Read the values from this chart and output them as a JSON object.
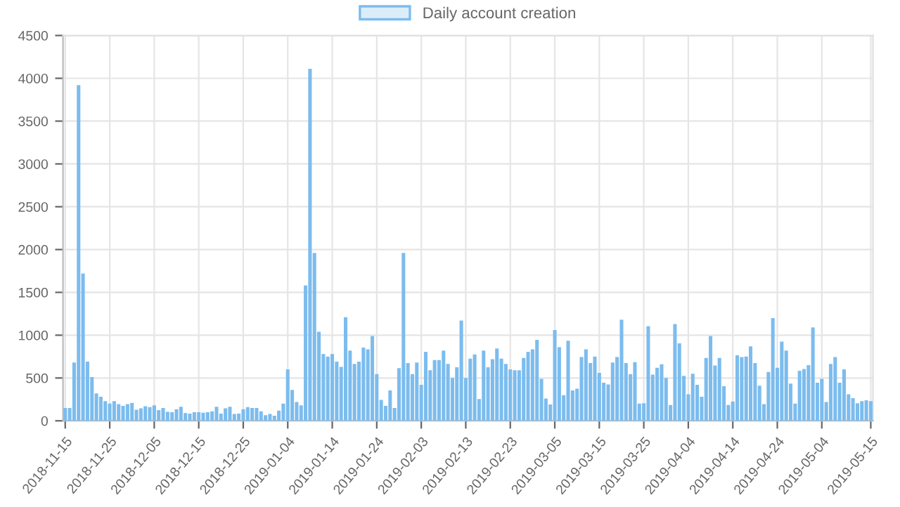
{
  "chart_data": {
    "type": "bar",
    "x": [
      "2018-11-15",
      "2018-11-16",
      "2018-11-17",
      "2018-11-18",
      "2018-11-19",
      "2018-11-20",
      "2018-11-21",
      "2018-11-22",
      "2018-11-23",
      "2018-11-24",
      "2018-11-25",
      "2018-11-26",
      "2018-11-27",
      "2018-11-28",
      "2018-11-29",
      "2018-11-30",
      "2018-12-01",
      "2018-12-02",
      "2018-12-03",
      "2018-12-04",
      "2018-12-05",
      "2018-12-06",
      "2018-12-07",
      "2018-12-08",
      "2018-12-09",
      "2018-12-10",
      "2018-12-11",
      "2018-12-12",
      "2018-12-13",
      "2018-12-14",
      "2018-12-15",
      "2018-12-16",
      "2018-12-17",
      "2018-12-18",
      "2018-12-19",
      "2018-12-20",
      "2018-12-21",
      "2018-12-22",
      "2018-12-23",
      "2018-12-24",
      "2018-12-25",
      "2018-12-26",
      "2018-12-27",
      "2018-12-28",
      "2018-12-29",
      "2018-12-30",
      "2018-12-31",
      "2019-01-01",
      "2019-01-02",
      "2019-01-03",
      "2019-01-04",
      "2019-01-05",
      "2019-01-06",
      "2019-01-07",
      "2019-01-08",
      "2019-01-09",
      "2019-01-10",
      "2019-01-11",
      "2019-01-12",
      "2019-01-13",
      "2019-01-14",
      "2019-01-15",
      "2019-01-16",
      "2019-01-17",
      "2019-01-18",
      "2019-01-19",
      "2019-01-20",
      "2019-01-21",
      "2019-01-22",
      "2019-01-23",
      "2019-01-24",
      "2019-01-25",
      "2019-01-26",
      "2019-01-27",
      "2019-01-28",
      "2019-01-29",
      "2019-01-30",
      "2019-01-31",
      "2019-02-01",
      "2019-02-02",
      "2019-02-03",
      "2019-02-04",
      "2019-02-05",
      "2019-02-06",
      "2019-02-07",
      "2019-02-08",
      "2019-02-09",
      "2019-02-10",
      "2019-02-11",
      "2019-02-12",
      "2019-02-13",
      "2019-02-14",
      "2019-02-15",
      "2019-02-16",
      "2019-02-17",
      "2019-02-18",
      "2019-02-19",
      "2019-02-20",
      "2019-02-21",
      "2019-02-22",
      "2019-02-23",
      "2019-02-24",
      "2019-02-25",
      "2019-02-26",
      "2019-02-27",
      "2019-02-28",
      "2019-03-01",
      "2019-03-02",
      "2019-03-03",
      "2019-03-04",
      "2019-03-05",
      "2019-03-06",
      "2019-03-07",
      "2019-03-08",
      "2019-03-09",
      "2019-03-10",
      "2019-03-11",
      "2019-03-12",
      "2019-03-13",
      "2019-03-14",
      "2019-03-15",
      "2019-03-16",
      "2019-03-17",
      "2019-03-18",
      "2019-03-19",
      "2019-03-20",
      "2019-03-21",
      "2019-03-22",
      "2019-03-23",
      "2019-03-24",
      "2019-03-25",
      "2019-03-26",
      "2019-03-27",
      "2019-03-28",
      "2019-03-29",
      "2019-03-30",
      "2019-03-31",
      "2019-04-01",
      "2019-04-02",
      "2019-04-03",
      "2019-04-04",
      "2019-04-05",
      "2019-04-06",
      "2019-04-07",
      "2019-04-08",
      "2019-04-09",
      "2019-04-10",
      "2019-04-11",
      "2019-04-12",
      "2019-04-13",
      "2019-04-14",
      "2019-04-15",
      "2019-04-16",
      "2019-04-17",
      "2019-04-18",
      "2019-04-19",
      "2019-04-20",
      "2019-04-21",
      "2019-04-22",
      "2019-04-23",
      "2019-04-24",
      "2019-04-25",
      "2019-04-26",
      "2019-04-27",
      "2019-04-28",
      "2019-04-29",
      "2019-04-30",
      "2019-05-01",
      "2019-05-02",
      "2019-05-03",
      "2019-05-04",
      "2019-05-05",
      "2019-05-06",
      "2019-05-07",
      "2019-05-08",
      "2019-05-09",
      "2019-05-10",
      "2019-05-11",
      "2019-05-12",
      "2019-05-13",
      "2019-05-14",
      "2019-05-15"
    ],
    "series": [
      {
        "name": "Daily account creation",
        "color": "#7cbcee",
        "values": [
          150,
          150,
          680,
          3920,
          1720,
          690,
          510,
          320,
          280,
          230,
          200,
          230,
          195,
          175,
          195,
          210,
          130,
          145,
          170,
          160,
          180,
          125,
          150,
          105,
          100,
          135,
          165,
          90,
          85,
          100,
          100,
          95,
          100,
          110,
          165,
          85,
          145,
          165,
          80,
          85,
          135,
          160,
          150,
          150,
          110,
          65,
          80,
          60,
          120,
          200,
          600,
          360,
          220,
          180,
          1580,
          4110,
          1960,
          1040,
          780,
          750,
          780,
          690,
          630,
          1210,
          820,
          665,
          690,
          855,
          835,
          990,
          545,
          245,
          175,
          355,
          150,
          615,
          1960,
          675,
          545,
          680,
          420,
          805,
          590,
          710,
          710,
          820,
          665,
          500,
          625,
          1170,
          500,
          725,
          775,
          255,
          820,
          625,
          720,
          845,
          725,
          665,
          600,
          590,
          590,
          735,
          805,
          835,
          945,
          490,
          260,
          190,
          1060,
          860,
          300,
          935,
          355,
          375,
          745,
          835,
          675,
          750,
          560,
          445,
          425,
          680,
          745,
          1180,
          675,
          545,
          685,
          200,
          205,
          1105,
          540,
          620,
          660,
          500,
          185,
          1130,
          905,
          525,
          310,
          550,
          420,
          280,
          735,
          990,
          645,
          735,
          405,
          185,
          225,
          765,
          745,
          750,
          870,
          675,
          410,
          195,
          570,
          1200,
          620,
          925,
          820,
          435,
          200,
          585,
          605,
          650,
          1090,
          445,
          490,
          220,
          665,
          745,
          445,
          600,
          310,
          265,
          205,
          230,
          240,
          230
        ]
      }
    ],
    "xlim": [
      "2018-11-14T12:00",
      "2019-05-15T12:00"
    ],
    "xticks": [
      "2018-11-15",
      "2018-11-25",
      "2018-12-05",
      "2018-12-15",
      "2018-12-25",
      "2019-01-04",
      "2019-01-14",
      "2019-01-24",
      "2019-02-03",
      "2019-02-13",
      "2019-02-23",
      "2019-03-05",
      "2019-03-15",
      "2019-03-25",
      "2019-04-04",
      "2019-04-14",
      "2019-04-24",
      "2019-05-04",
      "2019-05-15"
    ],
    "ylim": [
      0,
      4500
    ],
    "yticks": [
      0,
      500,
      1000,
      1500,
      2000,
      2500,
      3000,
      3500,
      4000,
      4500
    ],
    "grid": true,
    "legend": "top"
  }
}
